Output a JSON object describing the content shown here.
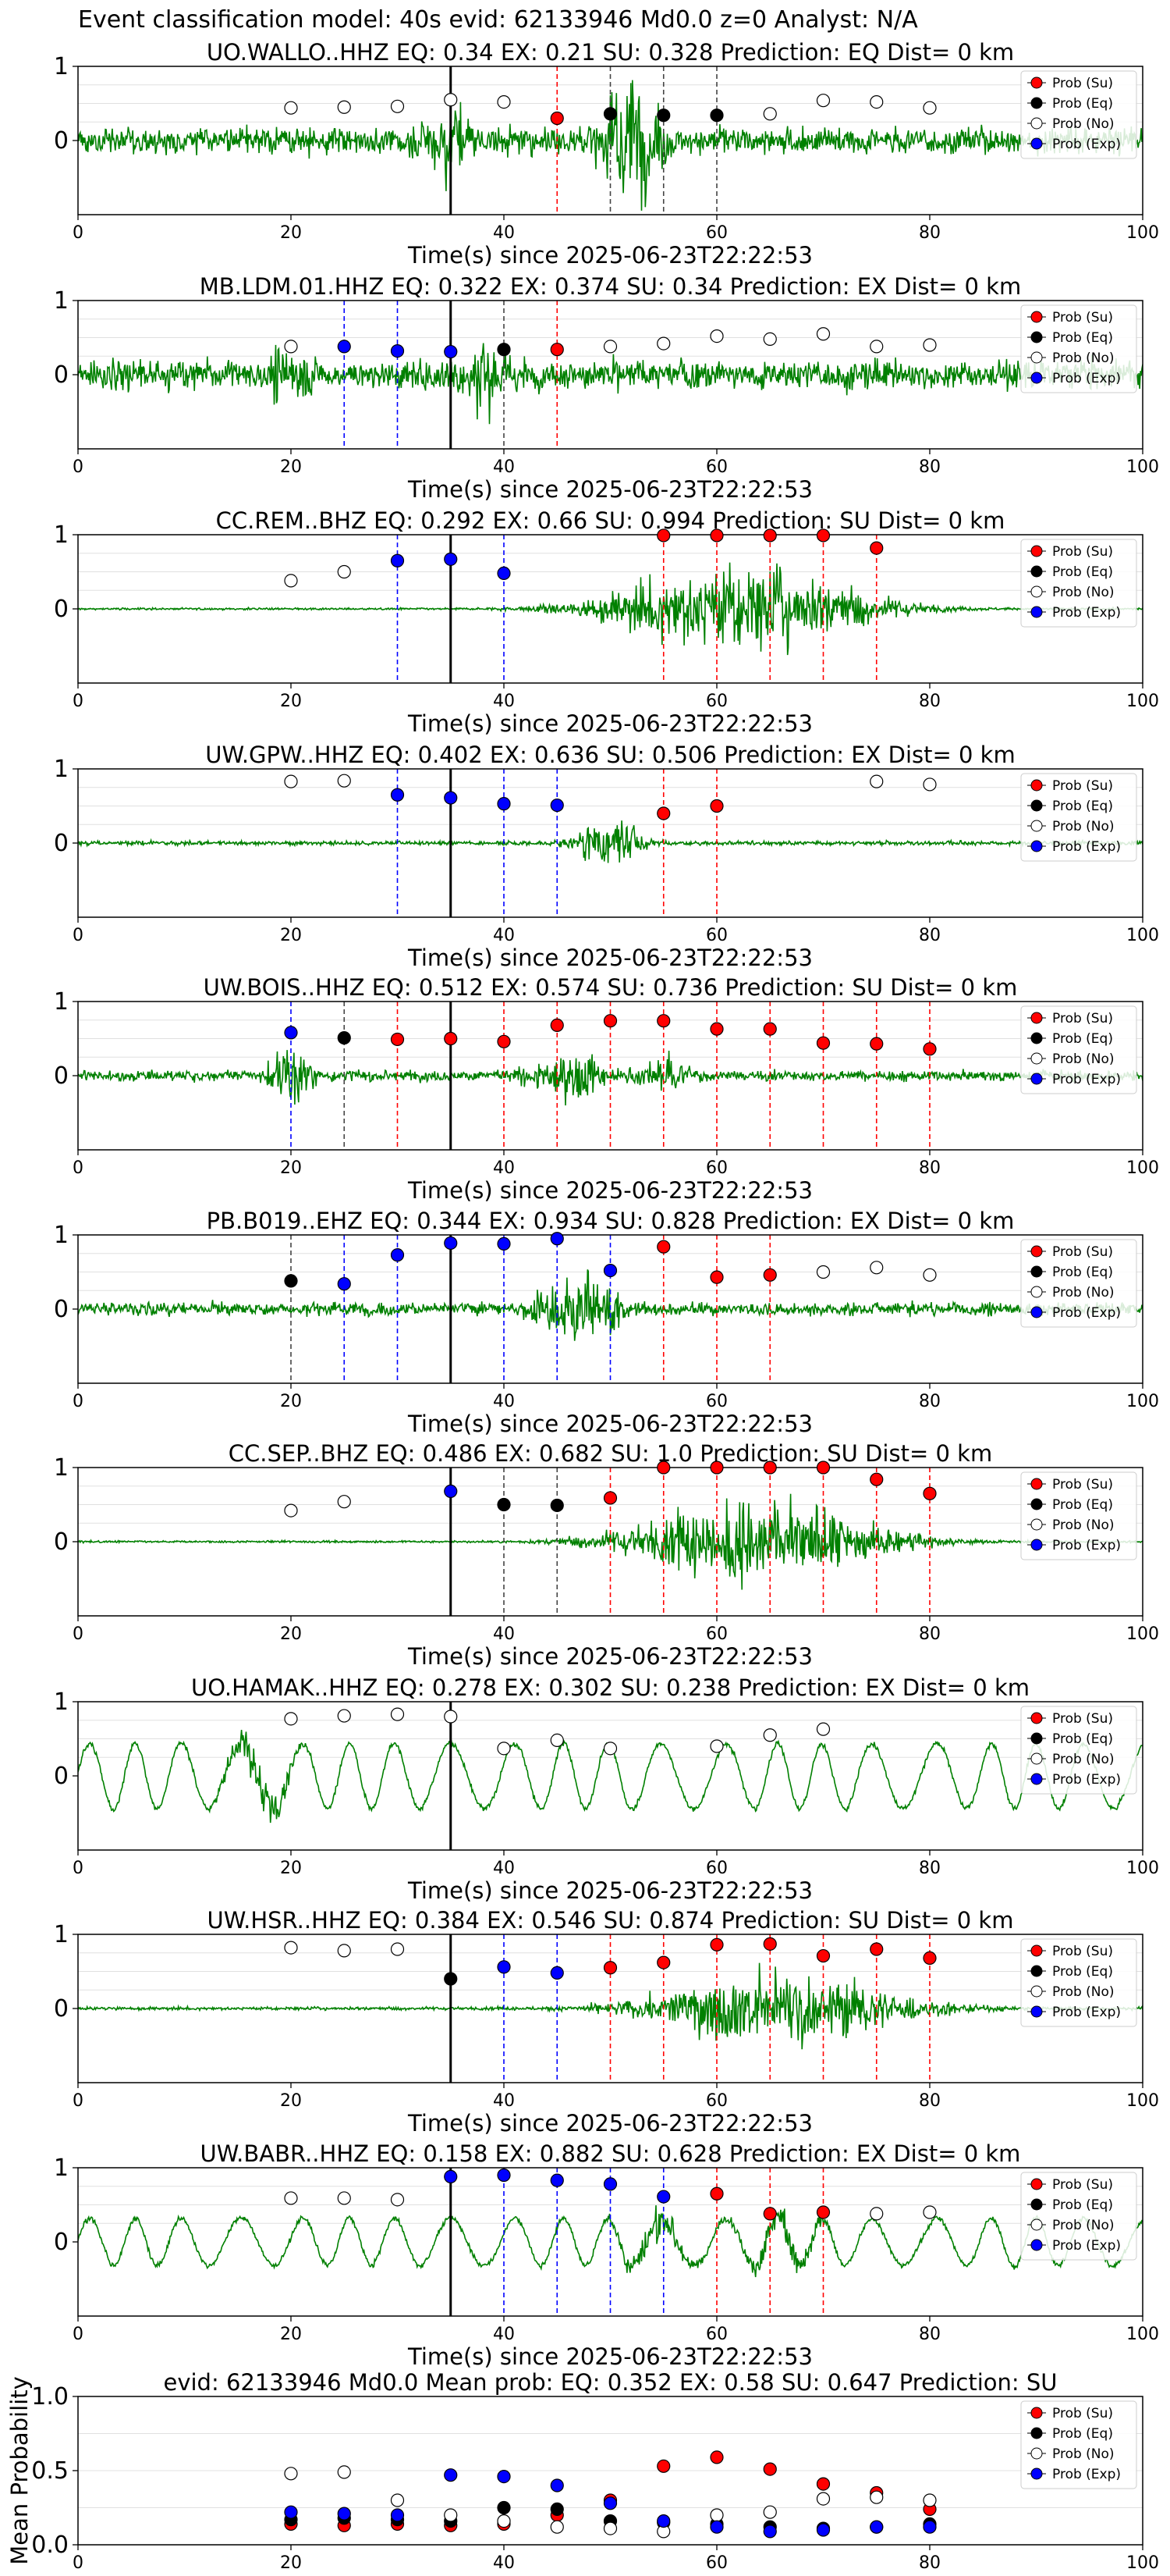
{
  "suptitle": "Event classification model: 40s evid: 62133946 Md0.0 z=0 Analyst: N/A",
  "colors": {
    "waveform": "#008000",
    "su": "#ff0000",
    "eq": "#000000",
    "no": "#ffffff",
    "exp": "#0000ff",
    "origin_line": "#000000"
  },
  "legend": {
    "placement": "top-right",
    "entries": [
      "Prob (Su)",
      "Prob (Eq)",
      "Prob (No)",
      "Prob (Exp)"
    ]
  },
  "chart_data": [
    {
      "type": "scatter",
      "title": "UO.WALLO..HHZ   EQ: 0.34  EX: 0.21  SU: 0.328   Prediction: EQ    Dist= 0 km",
      "xlabel": "Time(s) since 2025-06-23T22:22:53",
      "ylabel": "",
      "xlim": [
        0,
        100
      ],
      "ylim": [
        -1,
        1
      ],
      "xticks": [
        0,
        20,
        40,
        60,
        80,
        100
      ],
      "yticks": [
        0,
        1
      ],
      "grid": true,
      "origin_time": 35,
      "waveform": {
        "style": "noisy",
        "amp": 0.45,
        "bursts": [
          [
            35,
            3,
            0.7
          ],
          [
            52,
            3,
            1.3
          ]
        ]
      },
      "points": {
        "su": [
          [
            45,
            0.3
          ]
        ],
        "eq": [
          [
            50,
            0.36
          ],
          [
            55,
            0.34
          ],
          [
            60,
            0.34
          ]
        ],
        "exp": [],
        "no": [
          [
            20,
            0.44
          ],
          [
            25,
            0.45
          ],
          [
            30,
            0.46
          ],
          [
            35,
            0.55
          ],
          [
            40,
            0.52
          ],
          [
            65,
            0.36
          ],
          [
            70,
            0.54
          ],
          [
            75,
            0.52
          ],
          [
            80,
            0.44
          ]
        ]
      }
    },
    {
      "type": "scatter",
      "title": "MB.LDM.01.HHZ   EQ: 0.322  EX: 0.374  SU: 0.34   Prediction: EX    Dist= 0 km",
      "xlabel": "Time(s) since 2025-06-23T22:22:53",
      "ylabel": "",
      "xlim": [
        0,
        100
      ],
      "ylim": [
        -1,
        1
      ],
      "xticks": [
        0,
        20,
        40,
        60,
        80,
        100
      ],
      "yticks": [
        0,
        1
      ],
      "grid": true,
      "origin_time": 35,
      "waveform": {
        "style": "noisy",
        "amp": 0.5,
        "bursts": [
          [
            20,
            3,
            0.5
          ],
          [
            38,
            3,
            0.7
          ]
        ]
      },
      "points": {
        "su": [
          [
            45,
            0.34
          ]
        ],
        "eq": [
          [
            40,
            0.34
          ]
        ],
        "exp": [
          [
            25,
            0.38
          ],
          [
            30,
            0.32
          ],
          [
            35,
            0.31
          ]
        ],
        "no": [
          [
            20,
            0.38
          ],
          [
            50,
            0.38
          ],
          [
            55,
            0.42
          ],
          [
            60,
            0.52
          ],
          [
            65,
            0.48
          ],
          [
            70,
            0.55
          ],
          [
            75,
            0.38
          ],
          [
            80,
            0.4
          ]
        ]
      }
    },
    {
      "type": "scatter",
      "title": "CC.REM..BHZ   EQ: 0.292  EX: 0.66  SU: 0.994   Prediction: SU    Dist= 0 km",
      "xlabel": "Time(s) since 2025-06-23T22:22:53",
      "ylabel": "",
      "xlim": [
        0,
        100
      ],
      "ylim": [
        -1,
        1
      ],
      "xticks": [
        0,
        20,
        40,
        60,
        80,
        100
      ],
      "yticks": [
        0,
        1
      ],
      "grid": true,
      "origin_time": 35,
      "waveform": {
        "style": "flat",
        "amp": 0.02,
        "bursts": [
          [
            62,
            12,
            0.85
          ]
        ]
      },
      "points": {
        "su": [
          [
            55,
            0.99
          ],
          [
            60,
            0.99
          ],
          [
            65,
            0.99
          ],
          [
            70,
            0.99
          ],
          [
            75,
            0.82
          ]
        ],
        "eq": [],
        "exp": [
          [
            30,
            0.65
          ],
          [
            35,
            0.67
          ],
          [
            40,
            0.48
          ]
        ],
        "no": [
          [
            20,
            0.38
          ],
          [
            25,
            0.5
          ]
        ]
      }
    },
    {
      "type": "scatter",
      "title": "UW.GPW..HHZ   EQ: 0.402  EX: 0.636  SU: 0.506   Prediction: EX    Dist= 0 km",
      "xlabel": "Time(s) since 2025-06-23T22:22:53",
      "ylabel": "",
      "xlim": [
        0,
        100
      ],
      "ylim": [
        -1,
        1
      ],
      "xticks": [
        0,
        20,
        40,
        60,
        80,
        100
      ],
      "yticks": [
        0,
        1
      ],
      "grid": true,
      "origin_time": 35,
      "waveform": {
        "style": "flat",
        "amp": 0.04,
        "bursts": [
          [
            50,
            3,
            0.65
          ]
        ]
      },
      "points": {
        "su": [
          [
            55,
            0.4
          ],
          [
            60,
            0.5
          ]
        ],
        "eq": [],
        "exp": [
          [
            30,
            0.65
          ],
          [
            35,
            0.61
          ],
          [
            40,
            0.53
          ],
          [
            45,
            0.51
          ]
        ],
        "no": [
          [
            20,
            0.83
          ],
          [
            25,
            0.84
          ],
          [
            75,
            0.83
          ],
          [
            80,
            0.79
          ]
        ]
      }
    },
    {
      "type": "scatter",
      "title": "UW.BOIS..HHZ   EQ: 0.512  EX: 0.574  SU: 0.736   Prediction: SU    Dist= 0 km",
      "xlabel": "Time(s) since 2025-06-23T22:22:53",
      "ylabel": "",
      "xlim": [
        0,
        100
      ],
      "ylim": [
        -1,
        1
      ],
      "xticks": [
        0,
        20,
        40,
        60,
        80,
        100
      ],
      "yticks": [
        0,
        1
      ],
      "grid": true,
      "origin_time": 35,
      "waveform": {
        "style": "noisy",
        "amp": 0.18,
        "bursts": [
          [
            20,
            2,
            0.65
          ],
          [
            46,
            4,
            0.45
          ],
          [
            55,
            3,
            0.35
          ]
        ]
      },
      "points": {
        "su": [
          [
            30,
            0.49
          ],
          [
            35,
            0.5
          ],
          [
            40,
            0.46
          ],
          [
            45,
            0.68
          ],
          [
            50,
            0.74
          ],
          [
            55,
            0.74
          ],
          [
            60,
            0.63
          ],
          [
            65,
            0.63
          ],
          [
            70,
            0.44
          ],
          [
            75,
            0.43
          ],
          [
            80,
            0.36
          ]
        ],
        "eq": [
          [
            25,
            0.51
          ]
        ],
        "exp": [
          [
            20,
            0.58
          ]
        ],
        "no": []
      }
    },
    {
      "type": "scatter",
      "title": "PB.B019..EHZ   EQ: 0.344  EX: 0.934  SU: 0.828   Prediction: EX    Dist= 0 km",
      "xlabel": "Time(s) since 2025-06-23T22:22:53",
      "ylabel": "",
      "xlim": [
        0,
        100
      ],
      "ylim": [
        -1,
        1
      ],
      "xticks": [
        0,
        20,
        40,
        60,
        80,
        100
      ],
      "yticks": [
        0,
        1
      ],
      "grid": true,
      "origin_time": 35,
      "waveform": {
        "style": "noisy",
        "amp": 0.22,
        "bursts": [
          [
            47,
            4,
            0.85
          ]
        ]
      },
      "points": {
        "su": [
          [
            55,
            0.84
          ],
          [
            60,
            0.43
          ],
          [
            65,
            0.46
          ]
        ],
        "eq": [
          [
            20,
            0.38
          ]
        ],
        "exp": [
          [
            25,
            0.34
          ],
          [
            30,
            0.73
          ],
          [
            35,
            0.89
          ],
          [
            40,
            0.88
          ],
          [
            45,
            0.95
          ],
          [
            50,
            0.52
          ]
        ],
        "no": [
          [
            70,
            0.5
          ],
          [
            75,
            0.56
          ],
          [
            80,
            0.46
          ]
        ]
      }
    },
    {
      "type": "scatter",
      "title": "CC.SEP..BHZ   EQ: 0.486  EX: 0.682  SU: 1.0   Prediction: SU    Dist= 0 km",
      "xlabel": "Time(s) since 2025-06-23T22:22:53",
      "ylabel": "",
      "xlim": [
        0,
        100
      ],
      "ylim": [
        -1,
        1
      ],
      "xticks": [
        0,
        20,
        40,
        60,
        80,
        100
      ],
      "yticks": [
        0,
        1
      ],
      "grid": true,
      "origin_time": 35,
      "waveform": {
        "style": "flat",
        "amp": 0.02,
        "bursts": [
          [
            64,
            12,
            0.8
          ]
        ]
      },
      "points": {
        "su": [
          [
            50,
            0.59
          ],
          [
            55,
            1.0
          ],
          [
            60,
            1.0
          ],
          [
            65,
            1.0
          ],
          [
            70,
            1.0
          ],
          [
            75,
            0.84
          ],
          [
            80,
            0.65
          ]
        ],
        "eq": [
          [
            40,
            0.5
          ],
          [
            45,
            0.49
          ]
        ],
        "exp": [
          [
            35,
            0.68
          ]
        ],
        "no": [
          [
            20,
            0.42
          ],
          [
            25,
            0.54
          ]
        ]
      }
    },
    {
      "type": "scatter",
      "title": "UO.HAMAK..HHZ   EQ: 0.278  EX: 0.302  SU: 0.238   Prediction: EX    Dist= 0 km",
      "xlabel": "Time(s) since 2025-06-23T22:22:53",
      "ylabel": "",
      "xlim": [
        0,
        100
      ],
      "ylim": [
        -1,
        1
      ],
      "xticks": [
        0,
        20,
        40,
        60,
        80,
        100
      ],
      "yticks": [
        0,
        1
      ],
      "grid": true,
      "origin_time": 35,
      "waveform": {
        "style": "wavy",
        "amp": 0.55,
        "bursts": [
          [
            17,
            3,
            0.5
          ]
        ]
      },
      "points": {
        "su": [],
        "eq": [],
        "exp": [],
        "no": [
          [
            20,
            0.77
          ],
          [
            25,
            0.81
          ],
          [
            30,
            0.83
          ],
          [
            35,
            0.8
          ],
          [
            40,
            0.37
          ],
          [
            45,
            0.48
          ],
          [
            50,
            0.37
          ],
          [
            60,
            0.4
          ],
          [
            65,
            0.55
          ],
          [
            70,
            0.63
          ]
        ]
      }
    },
    {
      "type": "scatter",
      "title": "UW.HSR..HHZ   EQ: 0.384  EX: 0.546  SU: 0.874   Prediction: SU    Dist= 0 km",
      "xlabel": "Time(s) since 2025-06-23T22:22:53",
      "ylabel": "",
      "xlim": [
        0,
        100
      ],
      "ylim": [
        -1,
        1
      ],
      "xticks": [
        0,
        20,
        40,
        60,
        80,
        100
      ],
      "yticks": [
        0,
        1
      ],
      "grid": true,
      "origin_time": 35,
      "waveform": {
        "style": "flat",
        "amp": 0.03,
        "bursts": [
          [
            66,
            12,
            0.7
          ]
        ]
      },
      "points": {
        "su": [
          [
            50,
            0.55
          ],
          [
            55,
            0.62
          ],
          [
            60,
            0.86
          ],
          [
            65,
            0.87
          ],
          [
            70,
            0.71
          ],
          [
            75,
            0.8
          ],
          [
            80,
            0.68
          ]
        ],
        "eq": [
          [
            35,
            0.4
          ]
        ],
        "exp": [
          [
            40,
            0.56
          ],
          [
            45,
            0.48
          ]
        ],
        "no": [
          [
            20,
            0.82
          ],
          [
            25,
            0.78
          ],
          [
            30,
            0.8
          ]
        ]
      }
    },
    {
      "type": "scatter",
      "title": "UW.BABR..HHZ   EQ: 0.158  EX: 0.882  SU: 0.628   Prediction: EX    Dist= 0 km",
      "xlabel": "Time(s) since 2025-06-23T22:22:53",
      "ylabel": "",
      "xlim": [
        0,
        100
      ],
      "ylim": [
        -1,
        1
      ],
      "xticks": [
        0,
        20,
        40,
        60,
        80,
        100
      ],
      "yticks": [
        0,
        1
      ],
      "grid": true,
      "origin_time": 35,
      "waveform": {
        "style": "wavy",
        "amp": 0.4,
        "bursts": [
          [
            54,
            3,
            0.5
          ],
          [
            66,
            4,
            0.4
          ]
        ]
      },
      "points": {
        "su": [
          [
            60,
            0.65
          ],
          [
            65,
            0.38
          ],
          [
            70,
            0.4
          ]
        ],
        "eq": [],
        "exp": [
          [
            35,
            0.88
          ],
          [
            40,
            0.9
          ],
          [
            45,
            0.83
          ],
          [
            50,
            0.78
          ],
          [
            55,
            0.61
          ]
        ],
        "no": [
          [
            20,
            0.59
          ],
          [
            25,
            0.59
          ],
          [
            30,
            0.57
          ],
          [
            75,
            0.38
          ],
          [
            80,
            0.4
          ]
        ]
      }
    },
    {
      "type": "scatter",
      "title": "evid: 62133946  Md0.0   Mean prob:   EQ: 0.352  EX: 0.58  SU: 0.647   Prediction: SU",
      "xlabel": "",
      "ylabel": "Mean Probability",
      "xlim": [
        0,
        100
      ],
      "ylim": [
        0,
        1
      ],
      "xticks": [
        0,
        20,
        40,
        60,
        80,
        100
      ],
      "yticks": [
        0.0,
        0.5,
        1.0
      ],
      "ytick_labels": [
        "0.0",
        "0.5",
        "1.0"
      ],
      "grid": true,
      "origin_time": null,
      "waveform": null,
      "points": {
        "su": [
          [
            20,
            0.14
          ],
          [
            25,
            0.13
          ],
          [
            30,
            0.14
          ],
          [
            35,
            0.13
          ],
          [
            40,
            0.14
          ],
          [
            45,
            0.2
          ],
          [
            50,
            0.3
          ],
          [
            55,
            0.53
          ],
          [
            60,
            0.59
          ],
          [
            65,
            0.51
          ],
          [
            70,
            0.41
          ],
          [
            75,
            0.35
          ],
          [
            80,
            0.24
          ]
        ],
        "eq": [
          [
            20,
            0.17
          ],
          [
            25,
            0.18
          ],
          [
            30,
            0.17
          ],
          [
            35,
            0.16
          ],
          [
            40,
            0.25
          ],
          [
            45,
            0.24
          ],
          [
            50,
            0.16
          ],
          [
            55,
            0.15
          ],
          [
            60,
            0.14
          ],
          [
            65,
            0.12
          ],
          [
            70,
            0.11
          ],
          [
            75,
            0.12
          ],
          [
            80,
            0.14
          ]
        ],
        "no": [
          [
            20,
            0.48
          ],
          [
            25,
            0.49
          ],
          [
            30,
            0.3
          ],
          [
            35,
            0.2
          ],
          [
            40,
            0.16
          ],
          [
            45,
            0.12
          ],
          [
            50,
            0.11
          ],
          [
            55,
            0.09
          ],
          [
            60,
            0.2
          ],
          [
            65,
            0.22
          ],
          [
            70,
            0.31
          ],
          [
            75,
            0.32
          ],
          [
            80,
            0.3
          ]
        ],
        "exp": [
          [
            20,
            0.22
          ],
          [
            25,
            0.21
          ],
          [
            30,
            0.2
          ],
          [
            35,
            0.47
          ],
          [
            40,
            0.46
          ],
          [
            45,
            0.4
          ],
          [
            50,
            0.28
          ],
          [
            55,
            0.16
          ],
          [
            60,
            0.12
          ],
          [
            65,
            0.09
          ],
          [
            70,
            0.1
          ],
          [
            75,
            0.12
          ],
          [
            80,
            0.12
          ]
        ]
      }
    }
  ]
}
